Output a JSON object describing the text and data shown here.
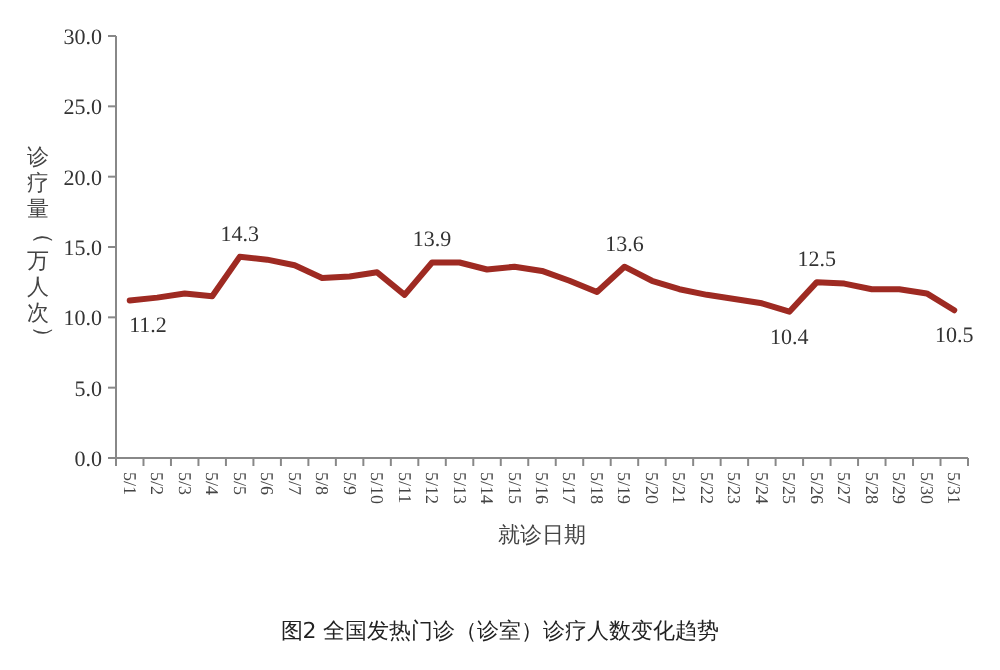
{
  "chart_data": {
    "type": "line",
    "xlabel": "就诊日期",
    "ylabel": "诊疗量（万人次）",
    "annotations": [
      "图2 全国发热门诊（诊室）诊疗人数变化趋势"
    ],
    "categories": [
      "5/1",
      "5/2",
      "5/3",
      "5/4",
      "5/5",
      "5/6",
      "5/7",
      "5/8",
      "5/9",
      "5/10",
      "5/11",
      "5/12",
      "5/13",
      "5/14",
      "5/15",
      "5/16",
      "5/17",
      "5/18",
      "5/19",
      "5/20",
      "5/21",
      "5/22",
      "5/23",
      "5/24",
      "5/25",
      "5/26",
      "5/27",
      "5/28",
      "5/29",
      "5/30",
      "5/31"
    ],
    "series": [
      {
        "color": "#9e2a22",
        "values": [
          11.2,
          11.4,
          11.7,
          11.5,
          14.3,
          14.1,
          13.7,
          12.8,
          12.9,
          13.2,
          11.6,
          13.9,
          13.9,
          13.4,
          13.6,
          13.3,
          12.6,
          11.8,
          13.6,
          12.6,
          12.0,
          11.6,
          11.3,
          11.0,
          10.4,
          12.5,
          12.4,
          12.0,
          12.0,
          11.7,
          10.5
        ],
        "value_labels": [
          "11.2",
          null,
          null,
          null,
          "14.3",
          null,
          null,
          null,
          null,
          null,
          null,
          "13.9",
          null,
          null,
          null,
          null,
          null,
          null,
          "13.6",
          null,
          null,
          null,
          null,
          null,
          "10.4",
          "12.5",
          null,
          null,
          null,
          null,
          "10.5"
        ]
      }
    ],
    "ylim": [
      0,
      30
    ],
    "yticks": [
      {
        "value": 0,
        "label": "0.0"
      },
      {
        "value": 5,
        "label": "5.0"
      },
      {
        "value": 10,
        "label": "10.0"
      },
      {
        "value": 15,
        "label": "15.0"
      },
      {
        "value": 20,
        "label": "20.0"
      },
      {
        "value": 25,
        "label": "25.0"
      },
      {
        "value": 30,
        "label": "30.0"
      }
    ],
    "grid": false,
    "marker": "none",
    "line_style": "solid"
  }
}
